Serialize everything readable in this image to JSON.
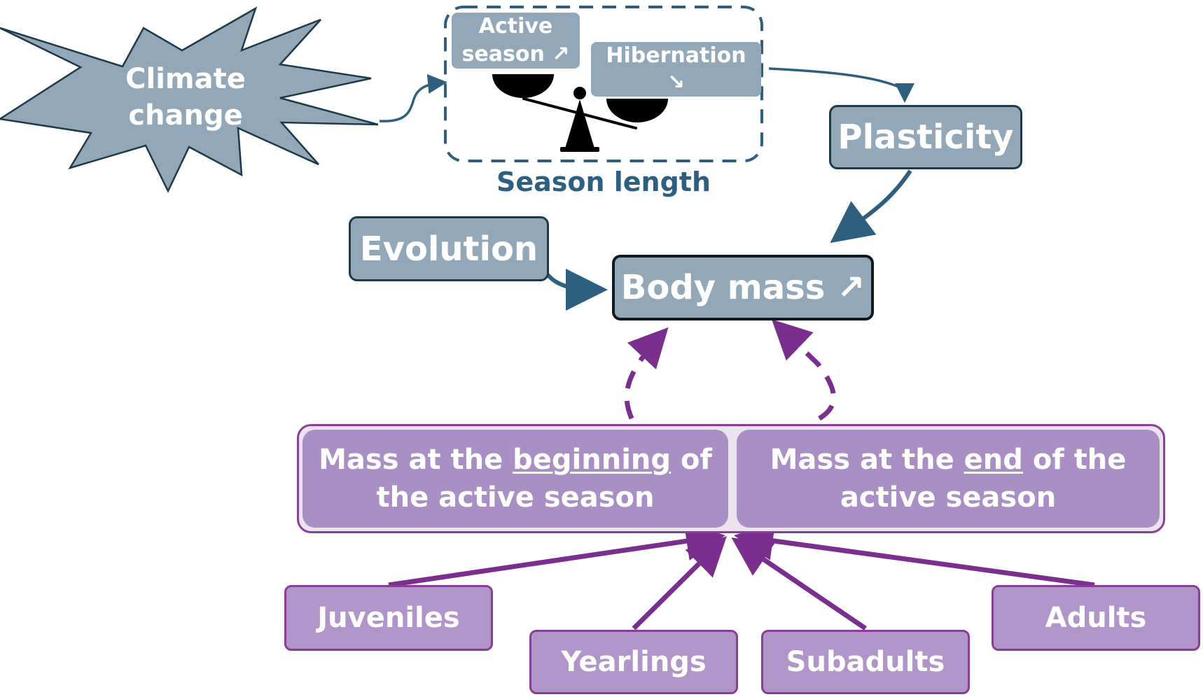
{
  "climate": {
    "line1": "Climate",
    "line2": "change"
  },
  "season": {
    "active_line1": "Active",
    "active_line2": "season ↗",
    "hibernation_line1": "Hibernation",
    "hibernation_line2": "↘",
    "caption": "Season length"
  },
  "plasticity": "Plasticity",
  "evolution": "Evolution",
  "body_mass": "Body mass ↗",
  "mass_begin": {
    "pre": "Mass at the ",
    "emph": "beginning",
    "post": " of",
    "line2": "the active season"
  },
  "mass_end": {
    "pre": "Mass at the ",
    "emph": "end",
    "post": " of the",
    "line2": "active season"
  },
  "age_classes": {
    "juveniles": "Juveniles",
    "yearlings": "Yearlings",
    "subadults": "Subadults",
    "adults": "Adults"
  },
  "colors": {
    "blue_fill": "#92a8b8",
    "blue_dark": "#2f5f7f",
    "purple_fill": "#b295c8",
    "purple_dark": "#7a2e8e"
  }
}
